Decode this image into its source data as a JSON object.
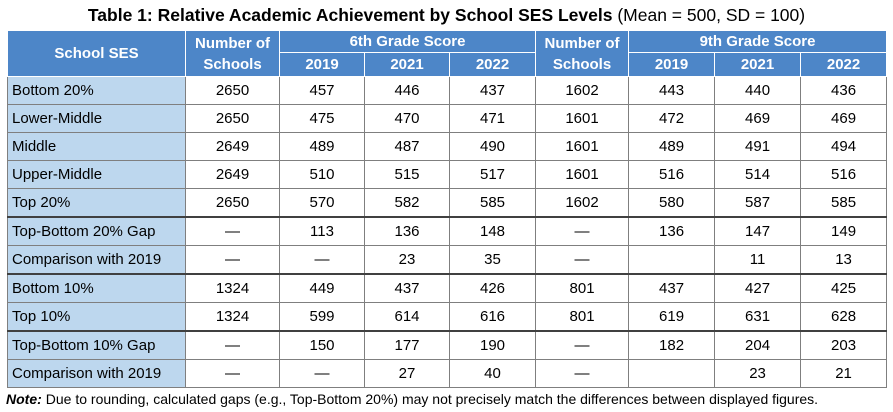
{
  "title": {
    "main": "Table 1: Relative Academic Achievement by School SES Levels",
    "sub": "(Mean = 500, SD = 100)"
  },
  "table": {
    "header": {
      "ses": "School SES",
      "schools_6": "Number of Schools",
      "grade_6": "6th Grade Score",
      "schools_9": "Number of Schools",
      "grade_9": "9th Grade Score",
      "years_6": [
        "2019",
        "2021",
        "2022"
      ],
      "years_9": [
        "2019",
        "2021",
        "2022"
      ]
    },
    "rows": [
      [
        "Bottom 20%",
        2650,
        457,
        446,
        437,
        1602,
        443,
        440,
        436
      ],
      [
        "Lower-Middle",
        2650,
        475,
        470,
        471,
        1601,
        472,
        469,
        469
      ],
      [
        "Middle",
        2649,
        489,
        487,
        490,
        1601,
        489,
        491,
        494
      ],
      [
        "Upper-Middle",
        2649,
        510,
        515,
        517,
        1601,
        516,
        514,
        516
      ],
      [
        "Top 20%",
        2650,
        570,
        582,
        585,
        1602,
        580,
        587,
        585
      ],
      [
        "Top-Bottom 20% Gap",
        "—",
        113,
        136,
        148,
        "—",
        136,
        147,
        149
      ],
      [
        "Comparison with 2019",
        "—",
        "—",
        23,
        35,
        "—",
        null,
        11,
        13
      ],
      [
        "Bottom 10%",
        1324,
        449,
        437,
        426,
        801,
        437,
        427,
        425
      ],
      [
        "Top 10%",
        1324,
        599,
        614,
        616,
        801,
        619,
        631,
        628
      ],
      [
        "Top-Bottom 10% Gap",
        "—",
        150,
        177,
        190,
        "—",
        182,
        204,
        203
      ],
      [
        "Comparison with 2019",
        "—",
        "—",
        27,
        40,
        "—",
        null,
        23,
        21
      ]
    ]
  },
  "note": {
    "label": "Note:",
    "text": "Due to rounding, calculated gaps (e.g., Top-Bottom 20%) may not precisely match the differences between displayed figures."
  }
}
